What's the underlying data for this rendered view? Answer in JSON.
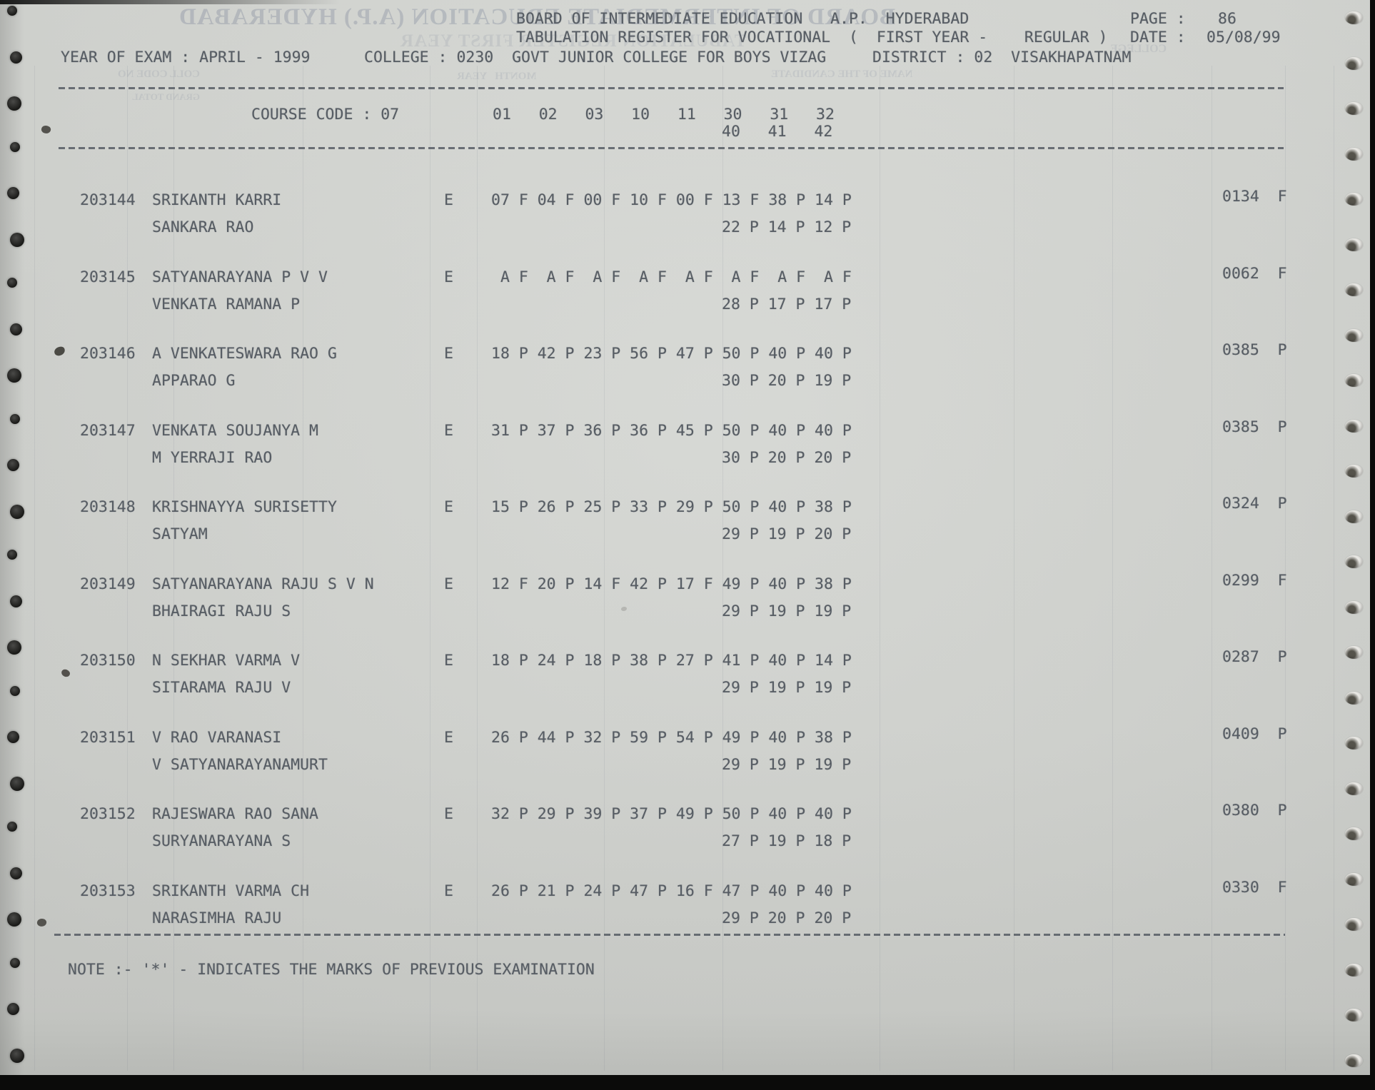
{
  "header": {
    "board_line": "BOARD OF INTERMEDIATE EDUCATION   A.P.  HYDERABAD",
    "page_label": "PAGE :",
    "page_value": "86",
    "register_line": "TABULATION REGISTER FOR VOCATIONAL  (  FIRST YEAR -    REGULAR )",
    "date_label": "DATE :",
    "date_value": "05/08/99",
    "year_of_exam": "YEAR OF EXAM : APRIL - 1999",
    "college_line": "COLLEGE : 0230  GOVT JUNIOR COLLEGE FOR BOYS VIZAG",
    "district_line": "DISTRICT : 02  VISAKHAPATNAM"
  },
  "course": {
    "label": "COURSE CODE : 07",
    "subject_codes_row1": [
      "01",
      "02",
      "03",
      "10",
      "11",
      "30",
      "31",
      "32"
    ],
    "subject_codes_row2": [
      "40",
      "41",
      "42"
    ]
  },
  "students": [
    {
      "regno": "203144",
      "name": "SRIKANTH KARRI",
      "father": "SANKARA RAO",
      "medium": "E",
      "marks_row1": [
        [
          "07",
          "F"
        ],
        [
          "04",
          "F"
        ],
        [
          "00",
          "F"
        ],
        [
          "10",
          "F"
        ],
        [
          "00",
          "F"
        ],
        [
          "13",
          "F"
        ],
        [
          "38",
          "P"
        ],
        [
          "14",
          "P"
        ]
      ],
      "marks_row2": [
        [
          "22",
          "P"
        ],
        [
          "14",
          "P"
        ],
        [
          "12",
          "P"
        ]
      ],
      "total": "0134",
      "result": "F"
    },
    {
      "regno": "203145",
      "name": "SATYANARAYANA P V V",
      "father": "VENKATA RAMANA P",
      "medium": "E",
      "marks_row1": [
        [
          "A",
          "F"
        ],
        [
          "A",
          "F"
        ],
        [
          "A",
          "F"
        ],
        [
          "A",
          "F"
        ],
        [
          "A",
          "F"
        ],
        [
          "A",
          "F"
        ],
        [
          "A",
          "F"
        ],
        [
          "A",
          "F"
        ]
      ],
      "marks_row2": [
        [
          "28",
          "P"
        ],
        [
          "17",
          "P"
        ],
        [
          "17",
          "P"
        ]
      ],
      "total": "0062",
      "result": "F"
    },
    {
      "regno": "203146",
      "name": "A VENKATESWARA RAO G",
      "father": "APPARAO G",
      "medium": "E",
      "marks_row1": [
        [
          "18",
          "P"
        ],
        [
          "42",
          "P"
        ],
        [
          "23",
          "P"
        ],
        [
          "56",
          "P"
        ],
        [
          "47",
          "P"
        ],
        [
          "50",
          "P"
        ],
        [
          "40",
          "P"
        ],
        [
          "40",
          "P"
        ]
      ],
      "marks_row2": [
        [
          "30",
          "P"
        ],
        [
          "20",
          "P"
        ],
        [
          "19",
          "P"
        ]
      ],
      "total": "0385",
      "result": "P"
    },
    {
      "regno": "203147",
      "name": "VENKATA SOUJANYA M",
      "father": "M YERRAJI RAO",
      "medium": "E",
      "marks_row1": [
        [
          "31",
          "P"
        ],
        [
          "37",
          "P"
        ],
        [
          "36",
          "P"
        ],
        [
          "36",
          "P"
        ],
        [
          "45",
          "P"
        ],
        [
          "50",
          "P"
        ],
        [
          "40",
          "P"
        ],
        [
          "40",
          "P"
        ]
      ],
      "marks_row2": [
        [
          "30",
          "P"
        ],
        [
          "20",
          "P"
        ],
        [
          "20",
          "P"
        ]
      ],
      "total": "0385",
      "result": "P"
    },
    {
      "regno": "203148",
      "name": "KRISHNAYYA SURISETTY",
      "father": "SATYAM",
      "medium": "E",
      "marks_row1": [
        [
          "15",
          "P"
        ],
        [
          "26",
          "P"
        ],
        [
          "25",
          "P"
        ],
        [
          "33",
          "P"
        ],
        [
          "29",
          "P"
        ],
        [
          "50",
          "P"
        ],
        [
          "40",
          "P"
        ],
        [
          "38",
          "P"
        ]
      ],
      "marks_row2": [
        [
          "29",
          "P"
        ],
        [
          "19",
          "P"
        ],
        [
          "20",
          "P"
        ]
      ],
      "total": "0324",
      "result": "P"
    },
    {
      "regno": "203149",
      "name": "SATYANARAYANA RAJU S V N",
      "father": "BHAIRAGI RAJU S",
      "medium": "E",
      "marks_row1": [
        [
          "12",
          "F"
        ],
        [
          "20",
          "P"
        ],
        [
          "14",
          "F"
        ],
        [
          "42",
          "P"
        ],
        [
          "17",
          "F"
        ],
        [
          "49",
          "P"
        ],
        [
          "40",
          "P"
        ],
        [
          "38",
          "P"
        ]
      ],
      "marks_row2": [
        [
          "29",
          "P"
        ],
        [
          "19",
          "P"
        ],
        [
          "19",
          "P"
        ]
      ],
      "total": "0299",
      "result": "F"
    },
    {
      "regno": "203150",
      "name": "N SEKHAR VARMA V",
      "father": "SITARAMA RAJU V",
      "medium": "E",
      "marks_row1": [
        [
          "18",
          "P"
        ],
        [
          "24",
          "P"
        ],
        [
          "18",
          "P"
        ],
        [
          "38",
          "P"
        ],
        [
          "27",
          "P"
        ],
        [
          "41",
          "P"
        ],
        [
          "40",
          "P"
        ],
        [
          "14",
          "P"
        ]
      ],
      "marks_row2": [
        [
          "29",
          "P"
        ],
        [
          "19",
          "P"
        ],
        [
          "19",
          "P"
        ]
      ],
      "total": "0287",
      "result": "P"
    },
    {
      "regno": "203151",
      "name": "V RAO VARANASI",
      "father": "V SATYANARAYANAMURT",
      "medium": "E",
      "marks_row1": [
        [
          "26",
          "P"
        ],
        [
          "44",
          "P"
        ],
        [
          "32",
          "P"
        ],
        [
          "59",
          "P"
        ],
        [
          "54",
          "P"
        ],
        [
          "49",
          "P"
        ],
        [
          "40",
          "P"
        ],
        [
          "38",
          "P"
        ]
      ],
      "marks_row2": [
        [
          "29",
          "P"
        ],
        [
          "19",
          "P"
        ],
        [
          "19",
          "P"
        ]
      ],
      "total": "0409",
      "result": "P"
    },
    {
      "regno": "203152",
      "name": "RAJESWARA RAO SANA",
      "father": "SURYANARAYANA S",
      "medium": "E",
      "marks_row1": [
        [
          "32",
          "P"
        ],
        [
          "29",
          "P"
        ],
        [
          "39",
          "P"
        ],
        [
          "37",
          "P"
        ],
        [
          "49",
          "P"
        ],
        [
          "50",
          "P"
        ],
        [
          "40",
          "P"
        ],
        [
          "40",
          "P"
        ]
      ],
      "marks_row2": [
        [
          "27",
          "P"
        ],
        [
          "19",
          "P"
        ],
        [
          "18",
          "P"
        ]
      ],
      "total": "0380",
      "result": "P"
    },
    {
      "regno": "203153",
      "name": "SRIKANTH VARMA CH",
      "father": "NARASIMHA RAJU",
      "medium": "E",
      "marks_row1": [
        [
          "26",
          "P"
        ],
        [
          "21",
          "P"
        ],
        [
          "24",
          "P"
        ],
        [
          "47",
          "P"
        ],
        [
          "16",
          "F"
        ],
        [
          "47",
          "P"
        ],
        [
          "40",
          "P"
        ],
        [
          "40",
          "P"
        ]
      ],
      "marks_row2": [
        [
          "29",
          "P"
        ],
        [
          "20",
          "P"
        ],
        [
          "20",
          "P"
        ]
      ],
      "total": "0330",
      "result": "F"
    }
  ],
  "note": "NOTE :- '*' - INDICATES THE MARKS OF PREVIOUS EXAMINATION",
  "ghost_bleedthrough": {
    "title": "BOARD OF INTERMEDIATE EDUCATION (A.P.) HYDERABAD",
    "subtitle": "TABULATION REGISTER FIRST YEAR",
    "fragments": [
      "COLL CODE NO",
      "MONTH   YEAR",
      "NAME OF THE CANDIDATE",
      "COLLEGE",
      "GRAND TOTAL"
    ]
  }
}
